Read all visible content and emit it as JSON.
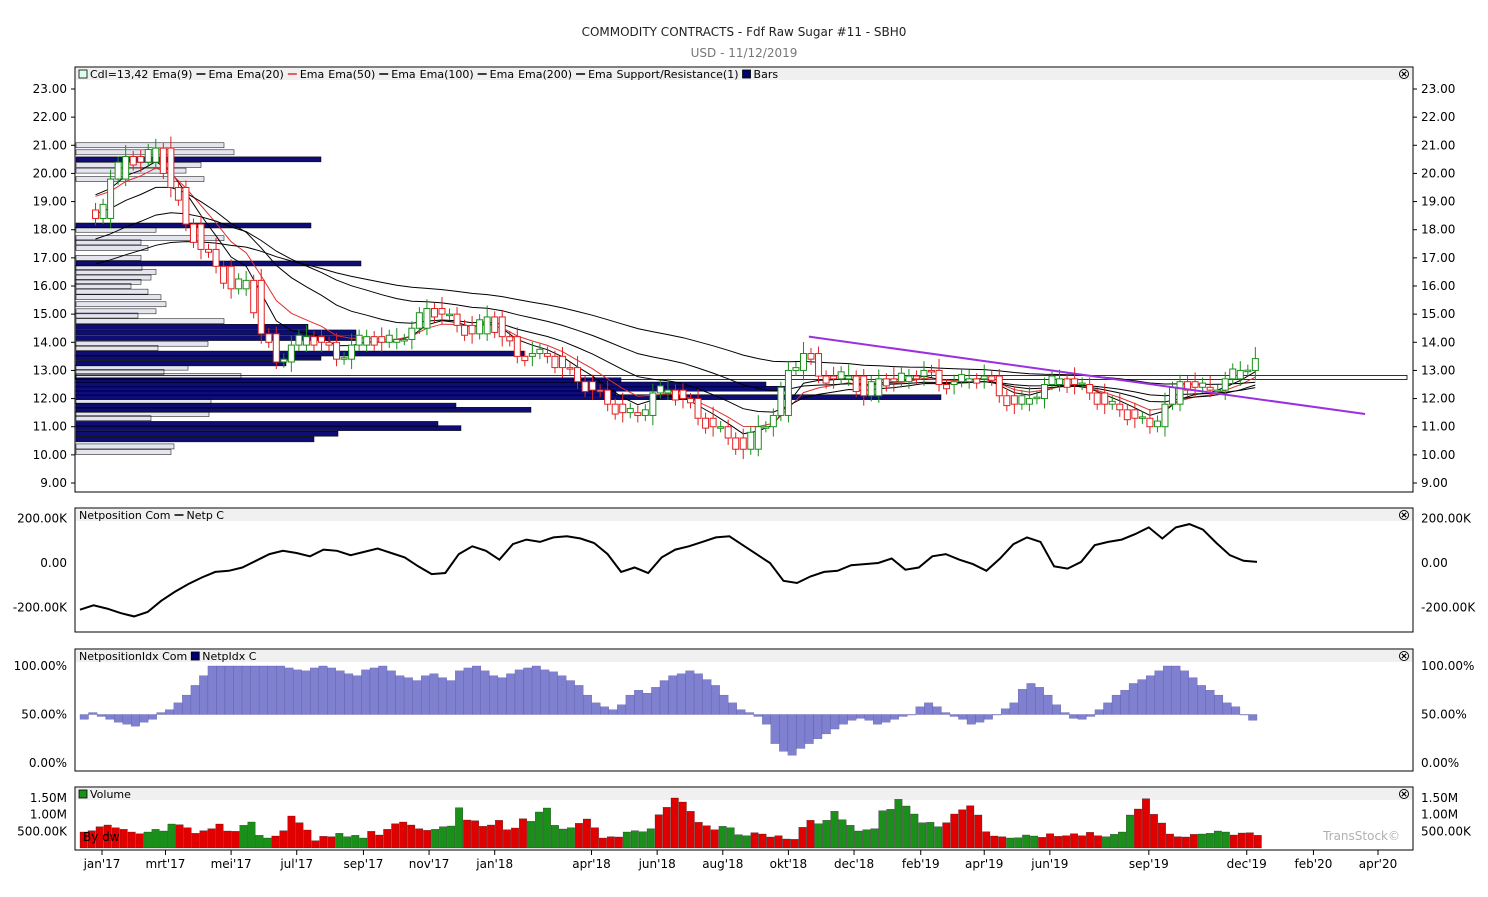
{
  "header": {
    "title": "COMMODITY CONTRACTS - Fdf Raw Sugar #11 - SBH0",
    "subtitle": "USD - 11/12/2019"
  },
  "colors": {
    "frame": "#000000",
    "bull": "#1a8f1a",
    "bear": "#e02020",
    "ema_red": "#e03030",
    "trendline": "#9b30e0",
    "bars_fill": "#00006e",
    "netidx_fill": "#8080d0",
    "vol_up": "#1a8f1a",
    "vol_down": "#e00000",
    "watermark": "#b0b0b0"
  },
  "x_axis": {
    "labels": [
      "jan'17",
      "mrt'17",
      "mei'17",
      "jul'17",
      "sep'17",
      "nov'17",
      "jan'18",
      "apr'18",
      "jun'18",
      "aug'18",
      "okt'18",
      "dec'18",
      "feb'19",
      "apr'19",
      "jun'19",
      "sep'19",
      "dec'19",
      "feb'20",
      "apr'20"
    ]
  },
  "panels": {
    "price": {
      "legend_parts": [
        "Cdl=13,42",
        "Ema(9)",
        "Ema",
        "Ema(20)",
        "Ema",
        "Ema(50)",
        "Ema",
        "Ema(100)",
        "Ema",
        "Ema(200)",
        "Ema",
        "Support/Resistance(1)",
        "Bars"
      ],
      "close_icon": "close-icon",
      "y_ticks": [
        "23.00",
        "22.00",
        "21.00",
        "20.00",
        "19.00",
        "18.00",
        "17.00",
        "16.00",
        "15.00",
        "14.00",
        "13.00",
        "12.00",
        "11.00",
        "10.00",
        "9.00"
      ]
    },
    "netposition": {
      "legend_parts": [
        "Netposition Com",
        "Netp C"
      ],
      "y_ticks": [
        "200.00K",
        "0.00",
        "-200.00K"
      ]
    },
    "netidx": {
      "legend_parts": [
        "NetpositionIdx Com",
        "NetpIdx C"
      ],
      "y_ticks": [
        "100.00%",
        "50.00%",
        "0.00%"
      ]
    },
    "volume": {
      "legend_parts": [
        "Volume"
      ],
      "y_ticks": [
        "1.50M",
        "1.00M",
        "500.00K"
      ],
      "overlay_text": "By dw",
      "watermark": "TransStock©"
    }
  },
  "chart_data": [
    {
      "type": "candlestick",
      "title": "COMMODITY CONTRACTS - Fdf Raw Sugar #11 - SBH0",
      "subtitle": "USD - 11/12/2019",
      "x_range": [
        "2016-12",
        "2020-04"
      ],
      "ylim": [
        9,
        23
      ],
      "close_series": [
        [
          "2016-12-26",
          18.4
        ],
        [
          "2017-01-09",
          19.8
        ],
        [
          "2017-01-23",
          20.6
        ],
        [
          "2017-02-06",
          20.4
        ],
        [
          "2017-02-20",
          20.9
        ],
        [
          "2017-03-06",
          19.5
        ],
        [
          "2017-03-20",
          18.2
        ],
        [
          "2017-04-03",
          17.3
        ],
        [
          "2017-04-17",
          16.7
        ],
        [
          "2017-05-01",
          15.9
        ],
        [
          "2017-05-15",
          16.2
        ],
        [
          "2017-05-29",
          14.3
        ],
        [
          "2017-06-12",
          13.3
        ],
        [
          "2017-06-26",
          13.9
        ],
        [
          "2017-07-10",
          14.2
        ],
        [
          "2017-07-24",
          14.0
        ],
        [
          "2017-08-07",
          13.4
        ],
        [
          "2017-08-21",
          13.9
        ],
        [
          "2017-09-04",
          14.2
        ],
        [
          "2017-09-18",
          14.0
        ],
        [
          "2017-10-02",
          14.1
        ],
        [
          "2017-10-16",
          14.5
        ],
        [
          "2017-10-30",
          15.2
        ],
        [
          "2017-11-13",
          15.0
        ],
        [
          "2017-11-27",
          14.6
        ],
        [
          "2017-12-11",
          14.3
        ],
        [
          "2017-12-25",
          14.9
        ],
        [
          "2018-01-08",
          14.2
        ],
        [
          "2018-01-22",
          13.5
        ],
        [
          "2018-02-05",
          13.6
        ],
        [
          "2018-02-19",
          13.5
        ],
        [
          "2018-03-05",
          13.1
        ],
        [
          "2018-03-19",
          12.6
        ],
        [
          "2018-04-02",
          12.3
        ],
        [
          "2018-04-16",
          11.8
        ],
        [
          "2018-04-30",
          11.5
        ],
        [
          "2018-05-14",
          11.4
        ],
        [
          "2018-05-28",
          12.2
        ],
        [
          "2018-06-11",
          12.3
        ],
        [
          "2018-06-25",
          12.0
        ],
        [
          "2018-07-09",
          11.3
        ],
        [
          "2018-07-23",
          11.0
        ],
        [
          "2018-08-06",
          10.6
        ],
        [
          "2018-08-20",
          10.2
        ],
        [
          "2018-09-03",
          11.0
        ],
        [
          "2018-09-17",
          11.4
        ],
        [
          "2018-10-01",
          13.0
        ],
        [
          "2018-10-15",
          13.6
        ],
        [
          "2018-10-29",
          12.8
        ],
        [
          "2018-11-12",
          12.7
        ],
        [
          "2018-11-26",
          12.8
        ],
        [
          "2018-12-10",
          12.1
        ],
        [
          "2018-12-24",
          12.7
        ],
        [
          "2019-01-07",
          12.6
        ],
        [
          "2019-01-21",
          12.8
        ],
        [
          "2019-02-04",
          13.0
        ],
        [
          "2019-02-18",
          12.5
        ],
        [
          "2019-03-04",
          12.6
        ],
        [
          "2019-03-18",
          12.7
        ],
        [
          "2019-04-01",
          12.8
        ],
        [
          "2019-04-15",
          12.1
        ],
        [
          "2019-04-29",
          11.8
        ],
        [
          "2019-05-13",
          12.0
        ],
        [
          "2019-05-27",
          12.5
        ],
        [
          "2019-06-10",
          12.7
        ],
        [
          "2019-06-24",
          12.5
        ],
        [
          "2019-07-08",
          12.2
        ],
        [
          "2019-07-22",
          11.8
        ],
        [
          "2019-08-05",
          11.6
        ],
        [
          "2019-08-19",
          11.3
        ],
        [
          "2019-09-02",
          11.0
        ],
        [
          "2019-09-16",
          11.8
        ],
        [
          "2019-09-30",
          12.6
        ],
        [
          "2019-10-14",
          12.4
        ],
        [
          "2019-10-28",
          12.3
        ],
        [
          "2019-11-11",
          12.7
        ],
        [
          "2019-11-25",
          13.0
        ],
        [
          "2019-12-09",
          13.42
        ]
      ]
    },
    {
      "type": "line",
      "name": "Netp C",
      "ylim": [
        -280000,
        310000
      ],
      "values": [
        -210000,
        -190000,
        -205000,
        -225000,
        -240000,
        -220000,
        -170000,
        -130000,
        -95000,
        -65000,
        -40000,
        -35000,
        -20000,
        10000,
        40000,
        55000,
        45000,
        30000,
        60000,
        55000,
        35000,
        50000,
        65000,
        45000,
        25000,
        -15000,
        -50000,
        -45000,
        40000,
        75000,
        55000,
        15000,
        85000,
        105000,
        95000,
        115000,
        120000,
        110000,
        90000,
        40000,
        -40000,
        -20000,
        -45000,
        25000,
        60000,
        75000,
        95000,
        115000,
        120000,
        80000,
        40000,
        0,
        -80000,
        -90000,
        -60000,
        -40000,
        -35000,
        -10000,
        -5000,
        0,
        20000,
        -30000,
        -20000,
        30000,
        40000,
        15000,
        -5000,
        -35000,
        20000,
        85000,
        115000,
        95000,
        -15000,
        -25000,
        5000,
        80000,
        95000,
        105000,
        130000,
        160000,
        110000,
        160000,
        175000,
        150000,
        90000,
        35000,
        10000,
        5000
      ]
    },
    {
      "type": "bar",
      "name": "NetpIdx C",
      "ylim": [
        0,
        100
      ],
      "baseline": 50,
      "values": [
        45,
        52,
        48,
        45,
        42,
        40,
        38,
        42,
        45,
        52,
        55,
        62,
        70,
        80,
        90,
        100,
        100,
        100,
        100,
        100,
        100,
        100,
        100,
        100,
        98,
        96,
        95,
        98,
        100,
        98,
        95,
        92,
        90,
        96,
        98,
        100,
        95,
        90,
        88,
        85,
        90,
        92,
        88,
        85,
        95,
        98,
        100,
        95,
        90,
        88,
        92,
        96,
        98,
        100,
        96,
        94,
        90,
        85,
        80,
        70,
        62,
        58,
        55,
        60,
        70,
        75,
        72,
        78,
        85,
        90,
        92,
        95,
        92,
        86,
        80,
        70,
        62,
        55,
        52,
        48,
        40,
        20,
        12,
        8,
        15,
        20,
        25,
        30,
        35,
        40,
        44,
        46,
        44,
        40,
        42,
        45,
        48,
        50,
        58,
        62,
        58,
        52,
        48,
        45,
        40,
        42,
        45,
        50,
        56,
        62,
        76,
        82,
        78,
        70,
        60,
        52,
        46,
        45,
        48,
        55,
        62,
        70,
        75,
        82,
        86,
        90,
        95,
        100,
        100,
        95,
        88,
        80,
        75,
        70,
        62,
        58,
        50,
        44
      ]
    },
    {
      "type": "bar",
      "name": "Volume",
      "ylim": [
        0,
        1600000
      ],
      "y_ticks": [
        "1.50M",
        "1.00M",
        "500.00K"
      ],
      "values": [
        480000,
        520000,
        640000,
        690000,
        610000,
        560000,
        480000,
        430000,
        480000,
        560000,
        510000,
        720000,
        700000,
        610000,
        440000,
        520000,
        580000,
        720000,
        510000,
        500000,
        680000,
        780000,
        380000,
        300000,
        360000,
        520000,
        960000,
        760000,
        540000,
        220000,
        350000,
        340000,
        440000,
        340000,
        380000,
        300000,
        500000,
        390000,
        560000,
        730000,
        780000,
        690000,
        580000,
        530000,
        560000,
        640000,
        660000,
        1210000,
        840000,
        820000,
        650000,
        690000,
        830000,
        550000,
        600000,
        880000,
        800000,
        1080000,
        1200000,
        680000,
        570000,
        610000,
        740000,
        870000,
        610000,
        300000,
        340000,
        330000,
        480000,
        520000,
        490000,
        580000,
        1000000,
        1220000,
        1560000,
        1380000,
        1100000,
        770000,
        670000,
        550000,
        650000,
        610000,
        400000,
        370000,
        460000,
        420000,
        330000,
        370000,
        270000,
        260000,
        620000,
        830000,
        730000,
        830000,
        1100000,
        850000,
        680000,
        510000,
        550000,
        580000,
        1120000,
        1160000,
        1460000,
        1260000,
        1020000,
        760000,
        770000,
        640000,
        760000,
        1020000,
        1150000,
        1270000,
        990000,
        490000,
        360000,
        340000,
        300000,
        310000,
        390000,
        360000,
        320000,
        430000,
        350000,
        370000,
        430000,
        370000,
        470000,
        370000,
        340000,
        410000,
        480000,
        990000,
        1170000,
        1480000,
        1010000,
        750000,
        420000,
        340000,
        330000,
        410000,
        420000,
        440000,
        510000,
        480000,
        390000,
        450000,
        460000,
        380000
      ]
    }
  ]
}
